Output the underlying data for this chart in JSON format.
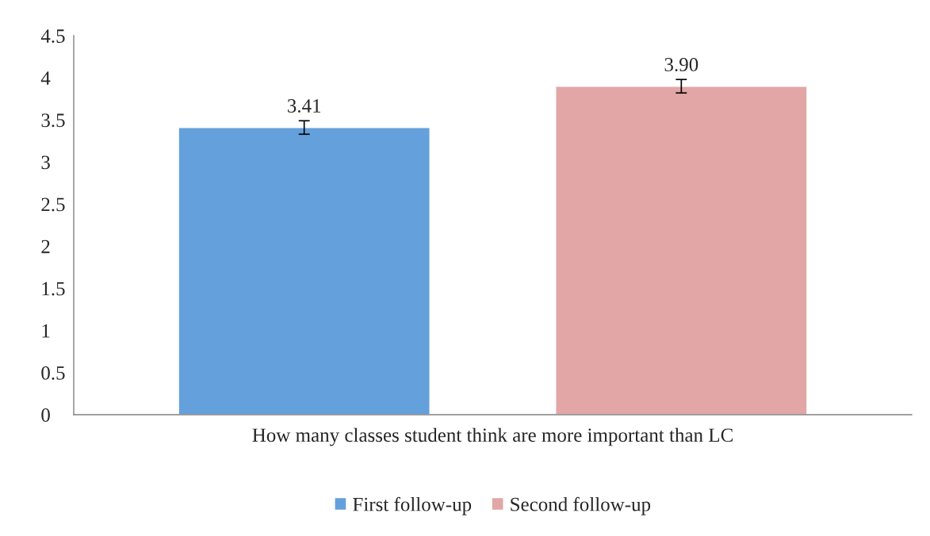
{
  "chart_data": {
    "type": "bar",
    "categories": [
      "How many classes student think are more important than LC"
    ],
    "series": [
      {
        "name": "First follow-up",
        "color": "#64a0dc",
        "values": [
          3.41
        ],
        "errors": [
          0.08
        ],
        "value_labels": [
          "3.41"
        ]
      },
      {
        "name": "Second follow-up",
        "color": "#e1a6a5",
        "values": [
          3.9
        ],
        "errors": [
          0.08
        ],
        "value_labels": [
          "3.90"
        ]
      }
    ],
    "ylim": [
      0,
      4.5
    ],
    "yticks": [
      0,
      0.5,
      1,
      1.5,
      2,
      2.5,
      3,
      3.5,
      4,
      4.5
    ],
    "grid": false,
    "legend": "bottom"
  }
}
